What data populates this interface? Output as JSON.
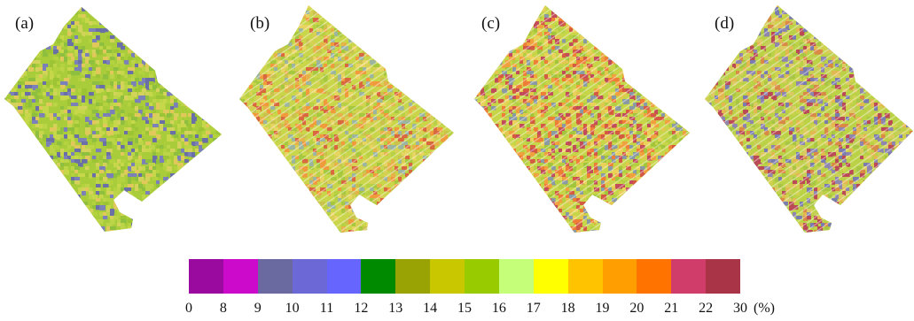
{
  "panels": [
    {
      "label": "(a)",
      "palette": [
        "#a9cd3a",
        "#b4d23e",
        "#9cc434",
        "#c6d84a",
        "#8fbf3e",
        "#7b80b8",
        "#6a6fa8",
        "#d3d25a",
        "#bcd447",
        "#e0c85a"
      ]
    },
    {
      "label": "(b)",
      "palette": [
        "#c9d64a",
        "#d8cf55",
        "#e6b24a",
        "#f09a3c",
        "#d9683f",
        "#b8d043",
        "#a6c83e",
        "#e8d460",
        "#c9c24c",
        "#9bb5a0"
      ]
    },
    {
      "label": "(c)",
      "palette": [
        "#c7d549",
        "#e2c84e",
        "#f0a13d",
        "#ee7e36",
        "#d45a42",
        "#b4cf42",
        "#a3c53c",
        "#e9d15a",
        "#c24c5a",
        "#8a9aa5"
      ]
    },
    {
      "label": "(d)",
      "palette": [
        "#bcd246",
        "#cfd14f",
        "#e4b850",
        "#d98a45",
        "#b94a56",
        "#8f86b0",
        "#7a7cb0",
        "#c7cf59",
        "#a9c544",
        "#dccb62"
      ]
    }
  ],
  "legend": {
    "colors": [
      "#9b0a9e",
      "#cc0acc",
      "#6b6aa0",
      "#6c68d6",
      "#6666ff",
      "#008a00",
      "#9aa304",
      "#c9c700",
      "#99cc00",
      "#c5ff7a",
      "#ffff00",
      "#ffc300",
      "#ff9e00",
      "#ff7400",
      "#d03d6a",
      "#a93447"
    ],
    "ticks": [
      "0",
      "8",
      "9",
      "10",
      "11",
      "12",
      "13",
      "14",
      "15",
      "16",
      "17",
      "18",
      "19",
      "20",
      "21",
      "22",
      "30"
    ],
    "unit": "(%)"
  }
}
